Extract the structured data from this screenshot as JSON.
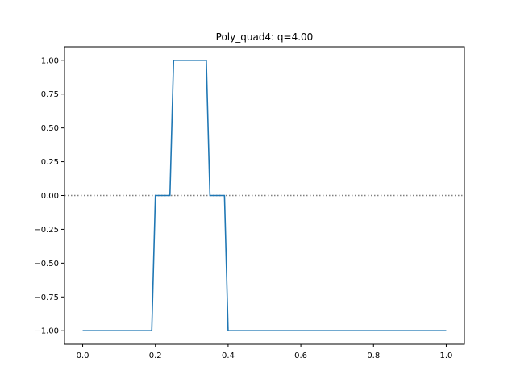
{
  "chart_data": {
    "type": "line",
    "title": "Poly_quad4: q=4.00",
    "xlabel": "",
    "ylabel": "",
    "xlim": [
      -0.05,
      1.05
    ],
    "ylim": [
      -1.1,
      1.1
    ],
    "x_ticks": [
      0.0,
      0.2,
      0.4,
      0.6,
      0.8,
      1.0
    ],
    "x_tick_labels": [
      "0.0",
      "0.2",
      "0.4",
      "0.6",
      "0.8",
      "1.0"
    ],
    "y_ticks": [
      -1.0,
      -0.75,
      -0.5,
      -0.25,
      0.0,
      0.25,
      0.5,
      0.75,
      1.0
    ],
    "y_tick_labels": [
      "−1.00",
      "−0.75",
      "−0.50",
      "−0.25",
      "0.00",
      "0.25",
      "0.50",
      "0.75",
      "1.00"
    ],
    "grid": false,
    "reference_line": {
      "y": 0.0,
      "style": "dotted",
      "color": "#808080"
    },
    "series": [
      {
        "color": "#1f77b4",
        "x": [
          0.0,
          0.19,
          0.2,
          0.24,
          0.25,
          0.34,
          0.35,
          0.39,
          0.4,
          1.0
        ],
        "y": [
          -1.0,
          -1.0,
          0.0,
          0.0,
          1.0,
          1.0,
          0.0,
          0.0,
          -1.0,
          -1.0
        ]
      }
    ]
  }
}
